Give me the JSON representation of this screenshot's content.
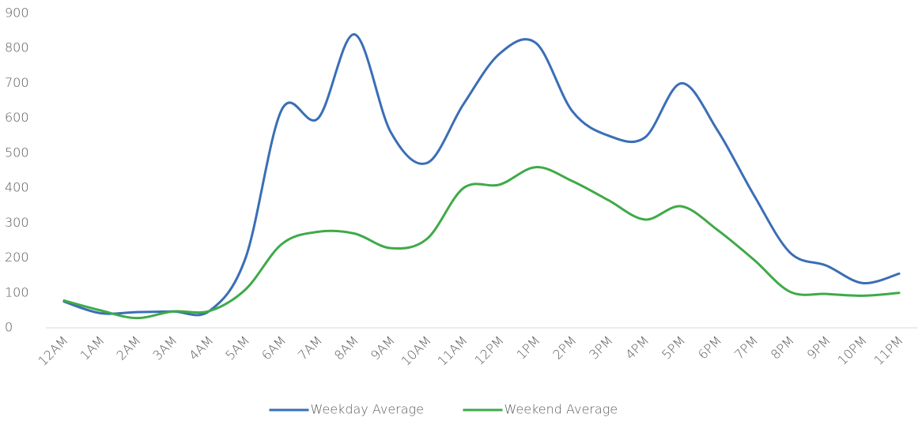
{
  "chart_data": {
    "type": "line",
    "categories": [
      "12AM",
      "1AM",
      "2AM",
      "3AM",
      "4AM",
      "5AM",
      "6AM",
      "7AM",
      "8AM",
      "9AM",
      "10AM",
      "11AM",
      "12PM",
      "1PM",
      "2PM",
      "3PM",
      "4PM",
      "5PM",
      "6PM",
      "7PM",
      "8PM",
      "9PM",
      "10PM",
      "11PM"
    ],
    "series": [
      {
        "name": "Weekday Average",
        "color": "#3a6eb6",
        "values": [
          75,
          42,
          45,
          47,
          48,
          200,
          625,
          600,
          840,
          560,
          472,
          640,
          785,
          815,
          620,
          550,
          545,
          700,
          565,
          380,
          215,
          178,
          128,
          155
        ]
      },
      {
        "name": "Weekend Average",
        "color": "#3faa48",
        "values": [
          78,
          50,
          28,
          47,
          48,
          110,
          240,
          275,
          270,
          228,
          255,
          400,
          410,
          460,
          420,
          365,
          310,
          348,
          280,
          195,
          103,
          97,
          92,
          100
        ]
      }
    ],
    "ylim": [
      0,
      900
    ],
    "yticks": [
      0,
      100,
      200,
      300,
      400,
      500,
      600,
      700,
      800,
      900
    ],
    "grid": false,
    "smooth": true,
    "legend": "bottom"
  }
}
